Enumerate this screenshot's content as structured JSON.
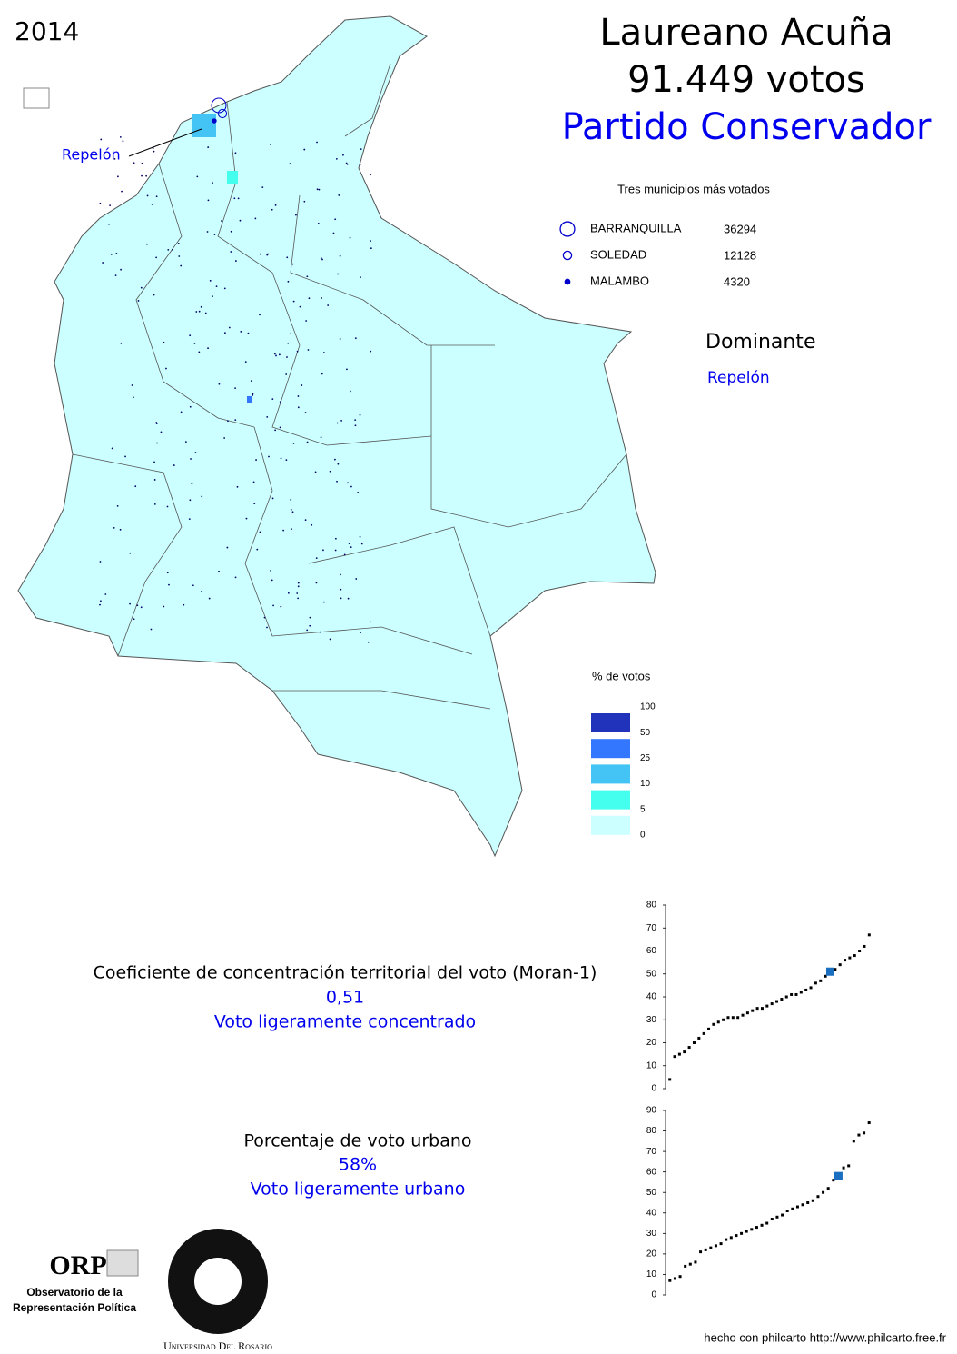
{
  "year": "2014",
  "header": {
    "candidate": "Laureano Acuña",
    "votes": "91.449 votos",
    "party": "Partido Conservador"
  },
  "top_municipalities": {
    "title": "Tres municipios más votados",
    "items": [
      {
        "name": "BARRANQUILLA",
        "votes": 36294
      },
      {
        "name": "SOLEDAD",
        "votes": 12128
      },
      {
        "name": "MALAMBO",
        "votes": 4320
      }
    ]
  },
  "map": {
    "callout": "Repelón"
  },
  "dominant": {
    "title": "Dominante",
    "name": "Repelón"
  },
  "legend": {
    "title": "% de votos",
    "breaks": [
      100,
      50,
      25,
      10,
      5,
      0
    ],
    "colors": [
      "#2233bb",
      "#3377ff",
      "#44c4f4",
      "#44ffee",
      "#ccffff"
    ]
  },
  "moran": {
    "label": "Coeficiente de concentración territorial del voto (Moran-1)",
    "value": "0,51",
    "description": "Voto ligeramente concentrado"
  },
  "urban": {
    "label": "Porcentaje de voto urbano",
    "value": "58%",
    "description": "Voto ligeramente urbano"
  },
  "chart_data": [
    {
      "type": "scatter",
      "ylim": [
        0,
        80
      ],
      "yticks": [
        0,
        10,
        20,
        30,
        40,
        50,
        60,
        70,
        80
      ],
      "series": [
        {
          "color": "#000000",
          "values": [
            4,
            14,
            15,
            16,
            18,
            20,
            22,
            24,
            26,
            28,
            29,
            30,
            31,
            31,
            31,
            32,
            33,
            34,
            35,
            35,
            36,
            37,
            38,
            39,
            40,
            41,
            41,
            42,
            43,
            44,
            46,
            47,
            49,
            null,
            52,
            54,
            56,
            57,
            58,
            60,
            62,
            67
          ]
        },
        {
          "color": "#1a6fc0",
          "values": [
            null,
            null,
            null,
            null,
            null,
            null,
            null,
            null,
            null,
            null,
            null,
            null,
            null,
            null,
            null,
            null,
            null,
            null,
            null,
            null,
            null,
            null,
            null,
            null,
            null,
            null,
            null,
            null,
            null,
            null,
            null,
            null,
            null,
            51,
            null,
            null,
            null,
            null,
            null,
            null,
            null,
            null
          ]
        }
      ]
    },
    {
      "type": "scatter",
      "ylim": [
        0,
        90
      ],
      "yticks": [
        0,
        10,
        20,
        30,
        40,
        50,
        60,
        70,
        80,
        90
      ],
      "series": [
        {
          "color": "#000000",
          "values": [
            7,
            8,
            9,
            14,
            15,
            16,
            21,
            22,
            23,
            24,
            25,
            27,
            28,
            29,
            30,
            31,
            32,
            33,
            34,
            35,
            37,
            38,
            39,
            41,
            42,
            43,
            44,
            45,
            46,
            48,
            50,
            52,
            56,
            null,
            62,
            63,
            75,
            78,
            79,
            84
          ]
        },
        {
          "color": "#1a6fc0",
          "values": [
            null,
            null,
            null,
            null,
            null,
            null,
            null,
            null,
            null,
            null,
            null,
            null,
            null,
            null,
            null,
            null,
            null,
            null,
            null,
            null,
            null,
            null,
            null,
            null,
            null,
            null,
            null,
            null,
            null,
            null,
            null,
            null,
            null,
            58,
            null,
            null,
            null,
            null,
            null,
            null
          ]
        }
      ]
    }
  ],
  "logos": {
    "orp": "ORP",
    "orp_line1": "Observatorio de la",
    "orp_line2": "Representación Política",
    "university": "Universidad Del Rosario"
  },
  "footer": "hecho con philcarto http://www.philcarto.free.fr"
}
